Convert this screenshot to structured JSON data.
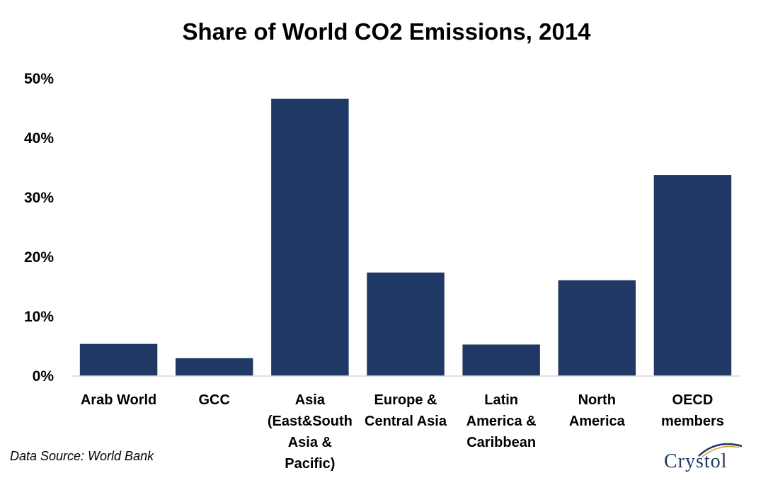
{
  "chart_data": {
    "type": "bar",
    "title": "Share of World CO2 Emissions, 2014",
    "categories": [
      [
        "Arab World"
      ],
      [
        "GCC"
      ],
      [
        "Asia",
        "(East&South",
        "Asia &",
        "Pacific)"
      ],
      [
        "Europe &",
        "Central Asia"
      ],
      [
        "Latin",
        "America &",
        "Caribbean"
      ],
      [
        "North",
        "America"
      ],
      [
        "OECD",
        "members"
      ]
    ],
    "values": [
      5.4,
      3.0,
      46.6,
      17.4,
      5.3,
      16.1,
      33.8
    ],
    "unit": "%",
    "ylim": [
      0,
      50
    ],
    "yticks": [
      "0%",
      "10%",
      "20%",
      "30%",
      "40%",
      "50%"
    ],
    "xlabel": "",
    "ylabel": "",
    "grid": false,
    "legend": "none",
    "bar_color": "#203864"
  },
  "source_note": "Data Source: World Bank",
  "logo": {
    "text": "Crystol",
    "color": "#1f3864"
  }
}
